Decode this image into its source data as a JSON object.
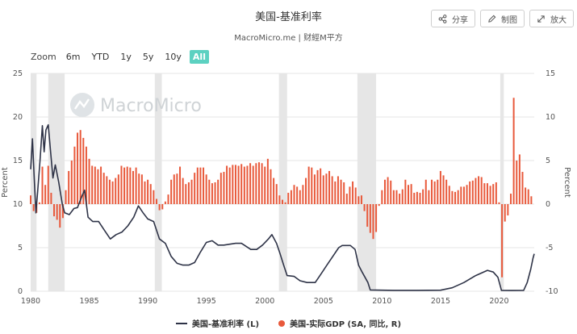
{
  "header": {
    "title": "美国-基准利率",
    "subtitle": "MacroMicro.me | 财經M平方",
    "share_label": "分享",
    "image_label": "制图",
    "expand_label": "放大"
  },
  "zoom": {
    "label": "Zoom",
    "options": [
      "6m",
      "YTD",
      "1y",
      "5y",
      "10y",
      "All"
    ],
    "active": "All"
  },
  "watermark": "MacroMicro",
  "colors": {
    "rate_line": "#2e3347",
    "gdp_bar": "#e8593b",
    "recession_band": "#e6e6e6",
    "active_zoom": "#5cd1c1"
  },
  "chart_data": {
    "type": "line+bar",
    "x_range": [
      1980,
      2023
    ],
    "x_ticks": [
      "1980",
      "1985",
      "1990",
      "1995",
      "2000",
      "2005",
      "2010",
      "2015",
      "2020"
    ],
    "left_axis": {
      "label": "Percent",
      "ylim": [
        0,
        25
      ],
      "ticks": [
        "0",
        "5",
        "10",
        "15",
        "20",
        "25"
      ]
    },
    "right_axis": {
      "label": "Percent",
      "ylim": [
        -10,
        15
      ],
      "ticks": [
        "-10",
        "-5",
        "0",
        "5",
        "10",
        "15"
      ]
    },
    "recessions": [
      [
        1980.0,
        1980.5
      ],
      [
        1981.5,
        1982.9
      ],
      [
        1990.6,
        1991.2
      ],
      [
        2001.2,
        2001.9
      ],
      [
        2007.9,
        2009.5
      ],
      [
        2020.1,
        2020.4
      ]
    ],
    "series": [
      {
        "name": "美国-基准利率 (L)",
        "axis": "left",
        "kind": "line",
        "points": [
          [
            1980.0,
            14.0
          ],
          [
            1980.15,
            17.5
          ],
          [
            1980.3,
            13.0
          ],
          [
            1980.45,
            9.0
          ],
          [
            1980.6,
            11.5
          ],
          [
            1980.8,
            15.0
          ],
          [
            1981.0,
            19.0
          ],
          [
            1981.15,
            16.0
          ],
          [
            1981.3,
            18.5
          ],
          [
            1981.5,
            19.1
          ],
          [
            1981.7,
            16.0
          ],
          [
            1981.9,
            13.0
          ],
          [
            1982.1,
            14.5
          ],
          [
            1982.4,
            12.5
          ],
          [
            1982.7,
            10.0
          ],
          [
            1982.9,
            9.0
          ],
          [
            1983.3,
            8.8
          ],
          [
            1983.7,
            9.5
          ],
          [
            1984.0,
            9.6
          ],
          [
            1984.4,
            11.0
          ],
          [
            1984.6,
            11.6
          ],
          [
            1984.9,
            8.5
          ],
          [
            1985.3,
            8.0
          ],
          [
            1985.8,
            8.0
          ],
          [
            1986.3,
            7.0
          ],
          [
            1986.8,
            6.0
          ],
          [
            1987.3,
            6.5
          ],
          [
            1987.8,
            6.8
          ],
          [
            1988.3,
            7.5
          ],
          [
            1988.8,
            8.5
          ],
          [
            1989.2,
            9.8
          ],
          [
            1989.6,
            9.0
          ],
          [
            1990.0,
            8.3
          ],
          [
            1990.5,
            8.0
          ],
          [
            1991.0,
            6.0
          ],
          [
            1991.5,
            5.5
          ],
          [
            1992.0,
            4.0
          ],
          [
            1992.5,
            3.2
          ],
          [
            1993.0,
            3.0
          ],
          [
            1993.5,
            3.0
          ],
          [
            1994.0,
            3.3
          ],
          [
            1994.5,
            4.5
          ],
          [
            1995.0,
            5.6
          ],
          [
            1995.5,
            5.8
          ],
          [
            1996.0,
            5.3
          ],
          [
            1996.5,
            5.3
          ],
          [
            1997.0,
            5.4
          ],
          [
            1997.5,
            5.5
          ],
          [
            1998.0,
            5.5
          ],
          [
            1998.8,
            4.8
          ],
          [
            1999.3,
            4.8
          ],
          [
            1999.8,
            5.3
          ],
          [
            2000.3,
            6.0
          ],
          [
            2000.6,
            6.5
          ],
          [
            2001.0,
            5.5
          ],
          [
            2001.3,
            4.3
          ],
          [
            2001.6,
            3.0
          ],
          [
            2001.9,
            1.8
          ],
          [
            2002.5,
            1.7
          ],
          [
            2003.0,
            1.2
          ],
          [
            2003.6,
            1.0
          ],
          [
            2004.3,
            1.0
          ],
          [
            2004.8,
            2.0
          ],
          [
            2005.3,
            3.0
          ],
          [
            2005.8,
            4.0
          ],
          [
            2006.3,
            5.0
          ],
          [
            2006.6,
            5.25
          ],
          [
            2007.3,
            5.25
          ],
          [
            2007.7,
            4.8
          ],
          [
            2008.0,
            3.0
          ],
          [
            2008.3,
            2.2
          ],
          [
            2008.8,
            1.0
          ],
          [
            2009.0,
            0.15
          ],
          [
            2011.0,
            0.1
          ],
          [
            2013.0,
            0.1
          ],
          [
            2015.0,
            0.12
          ],
          [
            2016.0,
            0.4
          ],
          [
            2017.0,
            1.0
          ],
          [
            2018.0,
            1.8
          ],
          [
            2019.0,
            2.4
          ],
          [
            2019.5,
            2.2
          ],
          [
            2019.9,
            1.6
          ],
          [
            2020.2,
            0.1
          ],
          [
            2021.0,
            0.08
          ],
          [
            2022.1,
            0.1
          ],
          [
            2022.4,
            1.0
          ],
          [
            2022.7,
            2.5
          ],
          [
            2022.9,
            3.8
          ],
          [
            2023.0,
            4.3
          ]
        ]
      },
      {
        "name": "美国-实际GDP (SA, 同比, R)",
        "axis": "right",
        "kind": "bar",
        "points": [
          [
            1980.0,
            1.0
          ],
          [
            1980.25,
            -0.8
          ],
          [
            1980.5,
            -1.0
          ],
          [
            1980.75,
            0.2
          ],
          [
            1981.0,
            4.3
          ],
          [
            1981.25,
            2.2
          ],
          [
            1981.5,
            4.4
          ],
          [
            1981.75,
            1.3
          ],
          [
            1982.0,
            -1.4
          ],
          [
            1982.25,
            -1.8
          ],
          [
            1982.5,
            -2.7
          ],
          [
            1982.75,
            -1.6
          ],
          [
            1983.0,
            1.6
          ],
          [
            1983.25,
            3.8
          ],
          [
            1983.5,
            5.0
          ],
          [
            1983.75,
            6.6
          ],
          [
            1984.0,
            8.2
          ],
          [
            1984.25,
            8.5
          ],
          [
            1984.5,
            7.6
          ],
          [
            1984.75,
            6.6
          ],
          [
            1985.0,
            5.2
          ],
          [
            1985.25,
            4.4
          ],
          [
            1985.5,
            4.3
          ],
          [
            1985.75,
            4.0
          ],
          [
            1986.0,
            4.3
          ],
          [
            1986.25,
            3.6
          ],
          [
            1986.5,
            3.2
          ],
          [
            1986.75,
            2.8
          ],
          [
            1987.0,
            2.6
          ],
          [
            1987.25,
            3.0
          ],
          [
            1987.5,
            3.4
          ],
          [
            1987.75,
            4.4
          ],
          [
            1988.0,
            4.2
          ],
          [
            1988.25,
            4.3
          ],
          [
            1988.5,
            4.2
          ],
          [
            1988.75,
            3.8
          ],
          [
            1989.0,
            4.2
          ],
          [
            1989.25,
            3.5
          ],
          [
            1989.5,
            3.4
          ],
          [
            1989.75,
            2.6
          ],
          [
            1990.0,
            2.8
          ],
          [
            1990.25,
            2.3
          ],
          [
            1990.5,
            1.6
          ],
          [
            1990.75,
            0.6
          ],
          [
            1991.0,
            -0.7
          ],
          [
            1991.25,
            -0.6
          ],
          [
            1991.5,
            0.3
          ],
          [
            1991.75,
            1.1
          ],
          [
            1992.0,
            2.8
          ],
          [
            1992.25,
            3.4
          ],
          [
            1992.5,
            3.5
          ],
          [
            1992.75,
            4.3
          ],
          [
            1993.0,
            3.0
          ],
          [
            1993.25,
            2.3
          ],
          [
            1993.5,
            2.5
          ],
          [
            1993.75,
            2.8
          ],
          [
            1994.0,
            3.6
          ],
          [
            1994.25,
            4.2
          ],
          [
            1994.5,
            4.2
          ],
          [
            1994.75,
            4.2
          ],
          [
            1995.0,
            3.4
          ],
          [
            1995.25,
            2.8
          ],
          [
            1995.5,
            2.4
          ],
          [
            1995.75,
            2.5
          ],
          [
            1996.0,
            2.8
          ],
          [
            1996.25,
            3.6
          ],
          [
            1996.5,
            3.7
          ],
          [
            1996.75,
            4.4
          ],
          [
            1997.0,
            4.2
          ],
          [
            1997.25,
            4.5
          ],
          [
            1997.5,
            4.5
          ],
          [
            1997.75,
            4.4
          ],
          [
            1998.0,
            4.6
          ],
          [
            1998.25,
            4.3
          ],
          [
            1998.5,
            4.4
          ],
          [
            1998.75,
            4.7
          ],
          [
            1999.0,
            4.4
          ],
          [
            1999.25,
            4.7
          ],
          [
            1999.5,
            4.8
          ],
          [
            1999.75,
            4.7
          ],
          [
            2000.0,
            4.3
          ],
          [
            2000.25,
            5.2
          ],
          [
            2000.5,
            4.0
          ],
          [
            2000.75,
            3.0
          ],
          [
            2001.0,
            2.3
          ],
          [
            2001.25,
            1.0
          ],
          [
            2001.5,
            0.5
          ],
          [
            2001.75,
            0.2
          ],
          [
            2002.0,
            1.3
          ],
          [
            2002.25,
            1.6
          ],
          [
            2002.5,
            2.2
          ],
          [
            2002.75,
            2.0
          ],
          [
            2003.0,
            1.6
          ],
          [
            2003.25,
            2.2
          ],
          [
            2003.5,
            3.0
          ],
          [
            2003.75,
            4.3
          ],
          [
            2004.0,
            4.2
          ],
          [
            2004.25,
            3.4
          ],
          [
            2004.5,
            3.9
          ],
          [
            2004.75,
            4.1
          ],
          [
            2005.0,
            3.3
          ],
          [
            2005.25,
            3.5
          ],
          [
            2005.5,
            3.8
          ],
          [
            2005.75,
            3.2
          ],
          [
            2006.0,
            2.6
          ],
          [
            2006.25,
            3.2
          ],
          [
            2006.5,
            2.8
          ],
          [
            2006.75,
            2.5
          ],
          [
            2007.0,
            1.2
          ],
          [
            2007.25,
            2.0
          ],
          [
            2007.5,
            2.6
          ],
          [
            2007.75,
            1.9
          ],
          [
            2008.0,
            0.9
          ],
          [
            2008.25,
            1.0
          ],
          [
            2008.5,
            -0.8
          ],
          [
            2008.75,
            -2.6
          ],
          [
            2009.0,
            -3.3
          ],
          [
            2009.25,
            -4.0
          ],
          [
            2009.5,
            -3.2
          ],
          [
            2009.75,
            -0.2
          ],
          [
            2010.0,
            1.6
          ],
          [
            2010.25,
            2.8
          ],
          [
            2010.5,
            3.1
          ],
          [
            2010.75,
            2.7
          ],
          [
            2011.0,
            1.6
          ],
          [
            2011.25,
            1.6
          ],
          [
            2011.5,
            1.2
          ],
          [
            2011.75,
            1.7
          ],
          [
            2012.0,
            2.8
          ],
          [
            2012.25,
            2.2
          ],
          [
            2012.5,
            2.3
          ],
          [
            2012.75,
            1.3
          ],
          [
            2013.0,
            1.4
          ],
          [
            2013.25,
            1.3
          ],
          [
            2013.5,
            1.7
          ],
          [
            2013.75,
            2.8
          ],
          [
            2014.0,
            1.6
          ],
          [
            2014.25,
            2.8
          ],
          [
            2014.5,
            2.6
          ],
          [
            2014.75,
            2.8
          ],
          [
            2015.0,
            3.8
          ],
          [
            2015.25,
            3.3
          ],
          [
            2015.5,
            2.8
          ],
          [
            2015.75,
            2.1
          ],
          [
            2016.0,
            1.5
          ],
          [
            2016.25,
            1.4
          ],
          [
            2016.5,
            1.6
          ],
          [
            2016.75,
            2.0
          ],
          [
            2017.0,
            2.0
          ],
          [
            2017.25,
            2.2
          ],
          [
            2017.5,
            2.6
          ],
          [
            2017.75,
            2.7
          ],
          [
            2018.0,
            3.0
          ],
          [
            2018.25,
            3.2
          ],
          [
            2018.5,
            3.1
          ],
          [
            2018.75,
            2.4
          ],
          [
            2019.0,
            2.4
          ],
          [
            2019.25,
            2.1
          ],
          [
            2019.5,
            2.3
          ],
          [
            2019.75,
            2.5
          ],
          [
            2020.0,
            0.2
          ],
          [
            2020.25,
            -8.4
          ],
          [
            2020.5,
            -2.0
          ],
          [
            2020.75,
            -1.3
          ],
          [
            2021.0,
            1.2
          ],
          [
            2021.25,
            12.2
          ],
          [
            2021.5,
            5.0
          ],
          [
            2021.75,
            5.7
          ],
          [
            2022.0,
            3.7
          ],
          [
            2022.25,
            1.9
          ],
          [
            2022.5,
            1.7
          ],
          [
            2022.75,
            0.9
          ]
        ]
      }
    ],
    "legend": "bottom"
  }
}
